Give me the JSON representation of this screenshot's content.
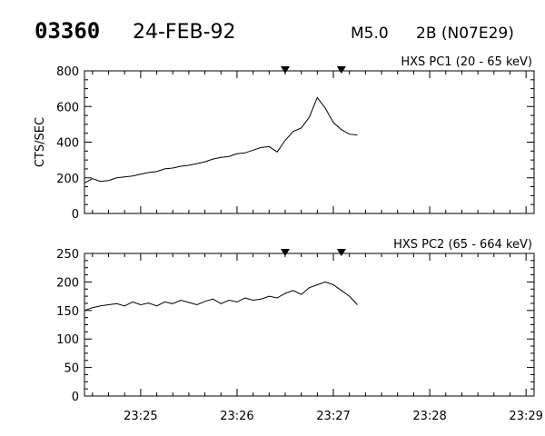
{
  "header": {
    "event_id": "03360",
    "date": "24-FEB-92",
    "goes_class": "M5.0",
    "optical": "2B (N07E29)"
  },
  "chart_data": [
    {
      "type": "line",
      "title": "HXS PC1 (20 - 65 keV)",
      "ylabel": "CTS/SEC",
      "xlabel": "",
      "xlim": [
        "23:24:25",
        "23:29:05"
      ],
      "ylim": [
        0,
        800
      ],
      "yticks": [
        0,
        200,
        400,
        600,
        800
      ],
      "ytick_labels": [
        "0",
        "200",
        "400",
        "600",
        "800"
      ],
      "xticks": [
        "23:25",
        "23:26",
        "23:27",
        "23:28",
        "23:29"
      ],
      "markers": [
        "23:26:30",
        "23:27:05"
      ],
      "series": [
        {
          "x": [
            "23:24:25",
            "23:24:30",
            "23:24:35",
            "23:24:40",
            "23:24:45",
            "23:24:50",
            "23:24:55",
            "23:25:00",
            "23:25:05",
            "23:25:10",
            "23:25:15",
            "23:25:20",
            "23:25:25",
            "23:25:30",
            "23:25:35",
            "23:25:40",
            "23:25:45",
            "23:25:50",
            "23:25:55",
            "23:26:00",
            "23:26:05",
            "23:26:10",
            "23:26:15",
            "23:26:20",
            "23:26:25",
            "23:26:30",
            "23:26:35",
            "23:26:40",
            "23:26:45",
            "23:26:50",
            "23:26:55",
            "23:27:00",
            "23:27:05",
            "23:27:10",
            "23:27:15"
          ],
          "values": [
            170,
            195,
            180,
            185,
            200,
            205,
            210,
            220,
            230,
            235,
            250,
            255,
            265,
            270,
            280,
            290,
            305,
            315,
            320,
            335,
            340,
            355,
            370,
            375,
            345,
            410,
            460,
            480,
            540,
            650,
            590,
            510,
            470,
            445,
            440
          ]
        }
      ]
    },
    {
      "type": "line",
      "title": "HXS PC2 (65 - 664 keV)",
      "ylabel": "",
      "xlabel": "",
      "xlim": [
        "23:24:25",
        "23:29:05"
      ],
      "ylim": [
        0,
        250
      ],
      "yticks": [
        0,
        50,
        100,
        150,
        200,
        250
      ],
      "ytick_labels": [
        "0",
        "50",
        "100",
        "150",
        "200",
        "250"
      ],
      "xticks": [
        "23:25",
        "23:26",
        "23:27",
        "23:28",
        "23:29"
      ],
      "xtick_labels": [
        "23:25",
        "23:26",
        "23:27",
        "23:28",
        "23:29"
      ],
      "markers": [
        "23:26:30",
        "23:27:05"
      ],
      "series": [
        {
          "x": [
            "23:24:25",
            "23:24:30",
            "23:24:35",
            "23:24:40",
            "23:24:45",
            "23:24:50",
            "23:24:55",
            "23:25:00",
            "23:25:05",
            "23:25:10",
            "23:25:15",
            "23:25:20",
            "23:25:25",
            "23:25:30",
            "23:25:35",
            "23:25:40",
            "23:25:45",
            "23:25:50",
            "23:25:55",
            "23:26:00",
            "23:26:05",
            "23:26:10",
            "23:26:15",
            "23:26:20",
            "23:26:25",
            "23:26:30",
            "23:26:35",
            "23:26:40",
            "23:26:45",
            "23:26:50",
            "23:26:55",
            "23:27:00",
            "23:27:05",
            "23:27:10",
            "23:27:15"
          ],
          "values": [
            150,
            155,
            158,
            160,
            162,
            158,
            165,
            160,
            163,
            158,
            165,
            162,
            168,
            164,
            160,
            166,
            170,
            162,
            168,
            165,
            172,
            168,
            170,
            175,
            172,
            180,
            185,
            178,
            190,
            195,
            200,
            195,
            185,
            175,
            160
          ]
        }
      ]
    }
  ]
}
